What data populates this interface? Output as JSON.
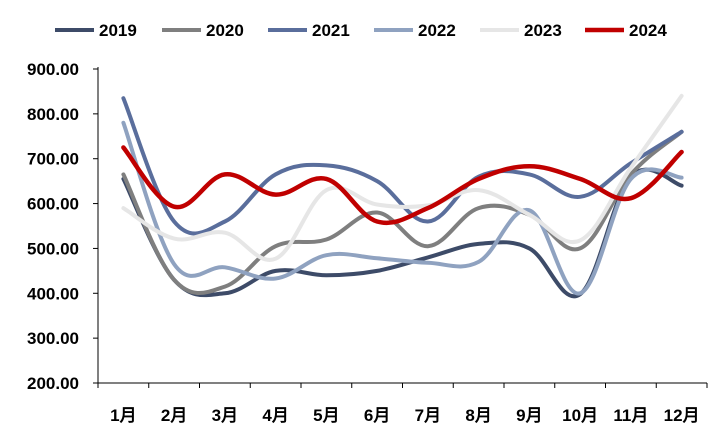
{
  "chart_data": {
    "type": "line",
    "title": "",
    "xlabel": "",
    "ylabel": "",
    "categories": [
      "1月",
      "2月",
      "3月",
      "4月",
      "5月",
      "6月",
      "7月",
      "8月",
      "9月",
      "10月",
      "11月",
      "12月"
    ],
    "ylim": [
      200,
      900
    ],
    "y_ticks": [
      "900.00",
      "800.00",
      "700.00",
      "600.00",
      "500.00",
      "400.00",
      "300.00",
      "200.00"
    ],
    "grid": false,
    "legend_position": "top",
    "series": [
      {
        "name": "2019",
        "color": "#3d4b68",
        "values": [
          655,
          430,
          400,
          450,
          440,
          450,
          480,
          510,
          500,
          398,
          660,
          640
        ]
      },
      {
        "name": "2020",
        "color": "#7f7f7f",
        "values": [
          665,
          430,
          415,
          505,
          520,
          580,
          505,
          590,
          575,
          500,
          665,
          760
        ]
      },
      {
        "name": "2021",
        "color": "#5a6e9c",
        "values": [
          835,
          560,
          560,
          665,
          685,
          650,
          560,
          660,
          665,
          615,
          690,
          760
        ]
      },
      {
        "name": "2022",
        "color": "#8fa2c0",
        "values": [
          780,
          465,
          458,
          433,
          485,
          478,
          468,
          470,
          585,
          400,
          655,
          658
        ]
      },
      {
        "name": "2023",
        "color": "#e6e6e6",
        "values": [
          590,
          522,
          535,
          477,
          630,
          598,
          596,
          630,
          575,
          518,
          680,
          840
        ]
      },
      {
        "name": "2024",
        "color": "#c00000",
        "values": [
          725,
          593,
          665,
          620,
          655,
          560,
          590,
          655,
          683,
          655,
          612,
          715
        ]
      }
    ]
  }
}
